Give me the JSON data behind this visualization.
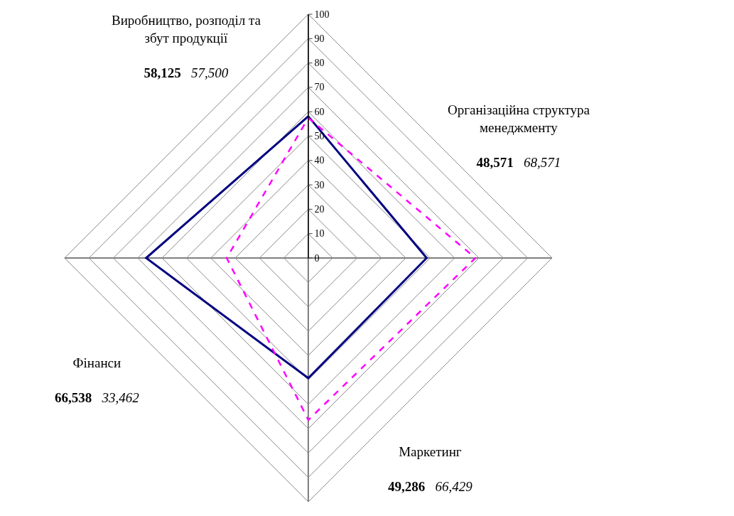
{
  "chart_data": {
    "type": "radar",
    "categories": [
      "Виробництво, розподіл та збут продукції",
      "Організаційна структура менеджменту",
      "Маркетинг",
      "Фінанси"
    ],
    "series": [
      {
        "color": "#000080",
        "values": [
          58.125,
          48.571,
          49.286,
          66.538
        ],
        "line_style": "solid"
      },
      {
        "color": "#ff00ff",
        "values": [
          57.5,
          68.571,
          66.429,
          33.462
        ],
        "line_style": "dashed"
      }
    ],
    "annotations": [
      "58,125",
      "57,500",
      "48,571",
      "68,571",
      "49,286",
      "66,429",
      "66,538",
      "33,462"
    ],
    "ylim": [
      0,
      100
    ],
    "yticks": [
      0,
      10,
      20,
      30,
      40,
      50,
      60,
      70,
      80,
      90,
      100
    ],
    "grid": true,
    "marker": "none"
  }
}
